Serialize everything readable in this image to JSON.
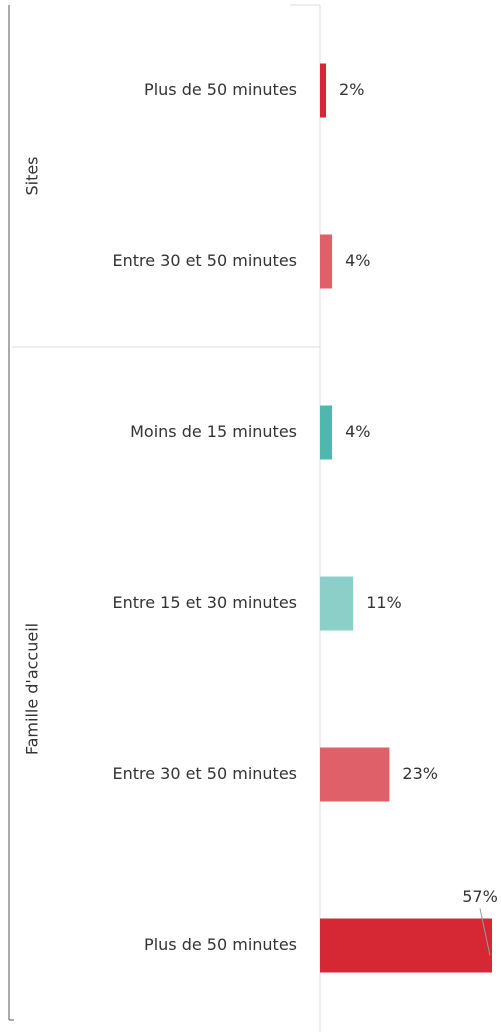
{
  "chart_data": {
    "type": "bar",
    "orientation": "horizontal",
    "xlim": [
      0,
      57
    ],
    "groups": [
      {
        "name": "Sites",
        "categories": [
          "Plus de 50 minutes",
          "Entre 30 et 50 minutes"
        ],
        "values": [
          2,
          4
        ],
        "value_labels": [
          "2%",
          "4%"
        ],
        "colors": [
          "#d62734",
          "#e0606a"
        ]
      },
      {
        "name": "Famille d'accueil",
        "categories": [
          "Moins de 15 minutes",
          "Entre 15 et 30 minutes",
          "Entre 30 et 50 minutes",
          "Plus de 50 minutes"
        ],
        "values": [
          4,
          11,
          23,
          57
        ],
        "value_labels": [
          "4%",
          "11%",
          "23%",
          "57%"
        ],
        "colors": [
          "#4fb8ae",
          "#8ccfc8",
          "#e0606a",
          "#d62734"
        ]
      }
    ]
  }
}
